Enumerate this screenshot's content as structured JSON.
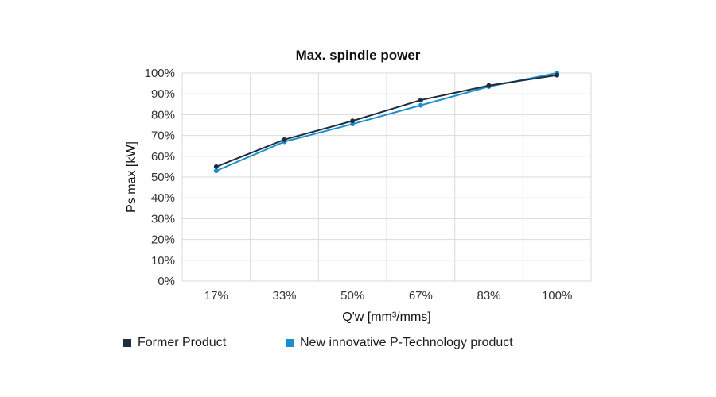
{
  "chart_data": {
    "type": "line",
    "title": "Max. spindle power",
    "xlabel": "Q'w [mm³/mms]",
    "ylabel": "Ps max [kW]",
    "categories": [
      "17%",
      "33%",
      "50%",
      "67%",
      "83%",
      "100%"
    ],
    "ylim": [
      0,
      100
    ],
    "yticks": [
      "0%",
      "10%",
      "20%",
      "30%",
      "40%",
      "50%",
      "60%",
      "70%",
      "80%",
      "90%",
      "100%"
    ],
    "grid": true,
    "legend_position": "bottom",
    "series": [
      {
        "name": "Former Product",
        "color": "#1f2d3d",
        "values": [
          55,
          68,
          77,
          87,
          94,
          99
        ]
      },
      {
        "name": "New innovative P-Technology product",
        "color": "#1a8fd0",
        "values": [
          53,
          67,
          75.5,
          84.5,
          93.5,
          100
        ]
      }
    ]
  }
}
